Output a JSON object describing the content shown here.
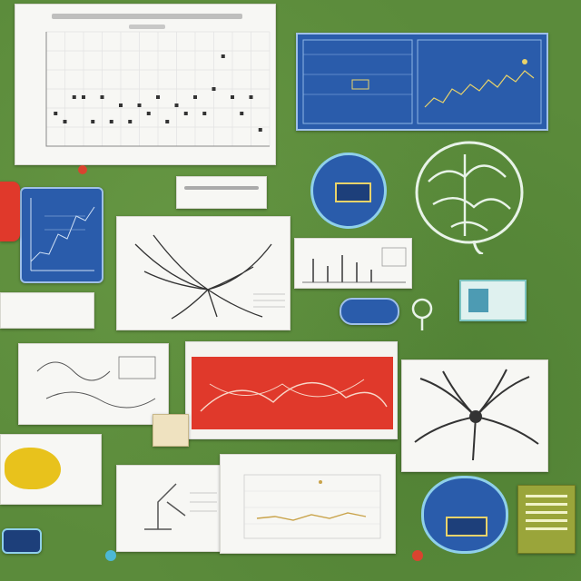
{
  "chart_data": [
    {
      "type": "scatter",
      "title": "",
      "xlabel": "",
      "ylabel": "",
      "x": [
        1,
        2,
        3,
        4,
        5,
        6,
        7,
        8,
        9,
        10,
        11,
        12,
        13,
        14,
        15,
        16,
        17,
        18,
        19,
        20,
        21,
        22,
        23
      ],
      "y": [
        4,
        3,
        6,
        6,
        3,
        6,
        3,
        5,
        3,
        5,
        4,
        6,
        3,
        5,
        4,
        6,
        4,
        7,
        11,
        6,
        4,
        6,
        2
      ],
      "ylim": [
        0,
        14
      ]
    }
  ],
  "colors": {
    "background": "#5b8b3b",
    "paper": "#f7f7f4",
    "blue_panel": "#2a5cab",
    "red_card": "#e0392b",
    "yellow_blob": "#e8c21c"
  },
  "icons": [
    "brain-diagram-icon",
    "neuron-tree-icon",
    "circuit-badge-icon",
    "microscope-icon",
    "lightbulb-icon",
    "pin-icon"
  ]
}
